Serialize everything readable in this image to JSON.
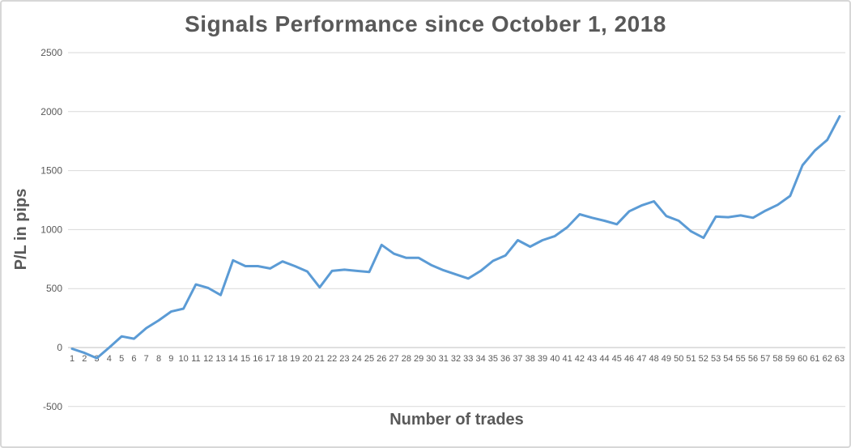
{
  "chart_data": {
    "type": "line",
    "title": "Signals Performance since October 1, 2018",
    "xlabel": "Number of trades",
    "ylabel": "P/L in pips",
    "x": [
      1,
      2,
      3,
      4,
      5,
      6,
      7,
      8,
      9,
      10,
      11,
      12,
      13,
      14,
      15,
      16,
      17,
      18,
      19,
      20,
      21,
      22,
      23,
      24,
      25,
      26,
      27,
      28,
      29,
      30,
      31,
      32,
      33,
      34,
      35,
      36,
      37,
      38,
      39,
      40,
      41,
      42,
      43,
      44,
      45,
      46,
      47,
      48,
      49,
      50,
      51,
      52,
      53,
      54,
      55,
      56,
      57,
      58,
      59,
      60,
      61,
      62,
      63
    ],
    "values": [
      -10,
      -45,
      -90,
      0,
      95,
      75,
      165,
      230,
      305,
      330,
      535,
      505,
      445,
      740,
      690,
      690,
      670,
      730,
      690,
      645,
      510,
      650,
      660,
      650,
      640,
      870,
      795,
      760,
      760,
      700,
      655,
      620,
      585,
      650,
      735,
      780,
      910,
      855,
      910,
      945,
      1020,
      1130,
      1100,
      1075,
      1045,
      1155,
      1205,
      1240,
      1115,
      1075,
      985,
      930,
      1110,
      1105,
      1120,
      1100,
      1160,
      1210,
      1285,
      1545,
      1670,
      1760,
      1960
    ],
    "ylim": [
      -500,
      2500
    ],
    "yticks": [
      -500,
      0,
      500,
      1000,
      1500,
      2000,
      2500
    ],
    "grid": true,
    "legend": "none",
    "colors": {
      "line": "#5B9BD5",
      "gridline": "#D9D9D9",
      "axis_line": "#BFBFBF",
      "text": "#595959",
      "border": "#D7D7D7"
    }
  }
}
